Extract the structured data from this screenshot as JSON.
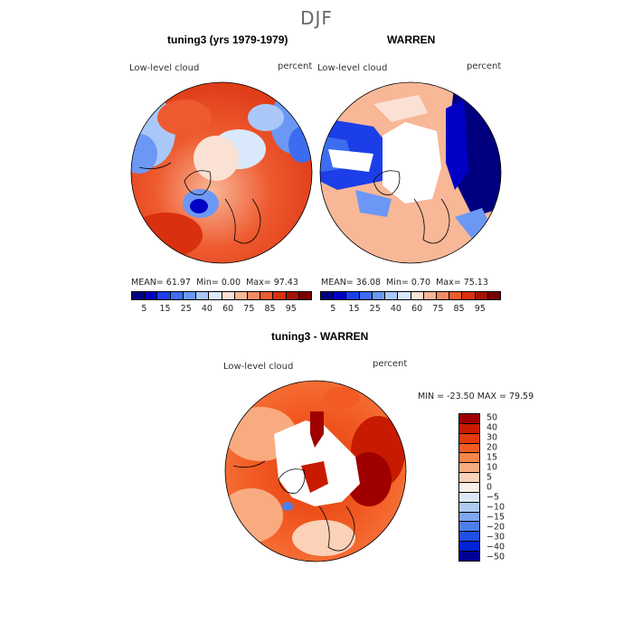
{
  "season": "DJF",
  "panels": [
    {
      "title": "tuning3 (yrs 1979-1979)",
      "variable": "Low-level cloud",
      "units": "percent",
      "stats": {
        "mean": "MEAN=   61.97",
        "min": "Min=    0.00",
        "max": "Max=   97.43"
      }
    },
    {
      "title": "WARREN",
      "variable": "Low-level cloud",
      "units": "percent",
      "stats": {
        "mean": "MEAN=   36.08",
        "min": "Min=    0.70",
        "max": "Max=   75.13"
      }
    },
    {
      "title": "tuning3 - WARREN",
      "variable": "Low-level cloud",
      "units": "percent",
      "stats": {
        "minmax": "MIN = -23.50 MAX =   79.59"
      }
    }
  ],
  "colorbar_top": {
    "colors": [
      "#00007f",
      "#0000c4",
      "#1c3ee8",
      "#3c6cf0",
      "#6c98f5",
      "#a9c8f8",
      "#d9e8fb",
      "#fbe1d3",
      "#f8b797",
      "#f58b61",
      "#ee5a30",
      "#d9300f",
      "#a61206",
      "#7a0000"
    ],
    "labels": [
      "5",
      "15",
      "25",
      "40",
      "60",
      "75",
      "85",
      "95"
    ]
  },
  "colorbar_diff": {
    "colors": [
      "#9e0000",
      "#c81a00",
      "#e33a0c",
      "#f25c24",
      "#f7844a",
      "#f9ab80",
      "#fbd1b8",
      "#fbeee6",
      "#dce8f8",
      "#aecbf5",
      "#7ea6f1",
      "#4d7eeb",
      "#1f4ee3",
      "#0022d4",
      "#000092"
    ],
    "labels": [
      "50",
      "40",
      "30",
      "20",
      "15",
      "10",
      "5",
      "0",
      "−5",
      "−10",
      "−15",
      "−20",
      "−30",
      "−40",
      "−50"
    ]
  }
}
